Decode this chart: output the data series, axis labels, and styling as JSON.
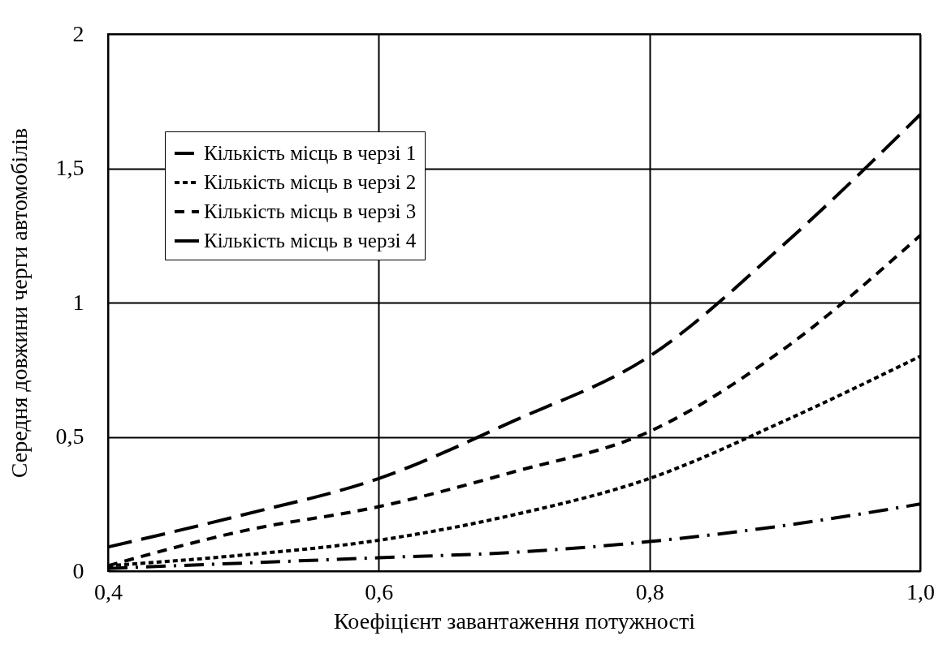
{
  "chart_data": {
    "type": "line",
    "xlabel": "Коефіцієнт завантаження потужності",
    "ylabel": "Середня довжини черги автомобілів",
    "x": [
      0.4,
      0.5,
      0.6,
      0.7,
      0.8,
      0.9,
      1.0
    ],
    "series": [
      {
        "name": "Кількість місць в черзі 1",
        "color": "#000000",
        "line_style": "dashed",
        "values": [
          0.01,
          0.03,
          0.05,
          0.07,
          0.11,
          0.17,
          0.25
        ]
      },
      {
        "name": "Кількість місць в черзі 2",
        "color": "#000000",
        "line_style": "dotted",
        "values": [
          0.02,
          0.06,
          0.115,
          0.21,
          0.345,
          0.56,
          0.8
        ]
      },
      {
        "name": "Кількість місць в черзі 3",
        "color": "#000000",
        "line_style": "dashed",
        "values": [
          0.02,
          0.15,
          0.24,
          0.37,
          0.52,
          0.83,
          1.25
        ]
      },
      {
        "name": "Кількість місць в черзі 4",
        "color": "#000000",
        "line_style": "dashed",
        "values": [
          0.09,
          0.21,
          0.345,
          0.56,
          0.8,
          1.22,
          1.7
        ]
      }
    ],
    "xlim": [
      0.4,
      1.0
    ],
    "xticks": [
      {
        "value": 0.4,
        "label": "0,4"
      },
      {
        "value": 0.6,
        "label": "0,6"
      },
      {
        "value": 0.8,
        "label": "0,8"
      },
      {
        "value": 1.0,
        "label": "1,0"
      }
    ],
    "ylim": [
      0,
      2
    ],
    "yticks": [
      0,
      {
        "value": 0.5,
        "label": "0,5"
      },
      1,
      {
        "value": 1.5,
        "label": "1,5"
      },
      2
    ],
    "grid": true,
    "legend": "top left",
    "marker": "none"
  }
}
